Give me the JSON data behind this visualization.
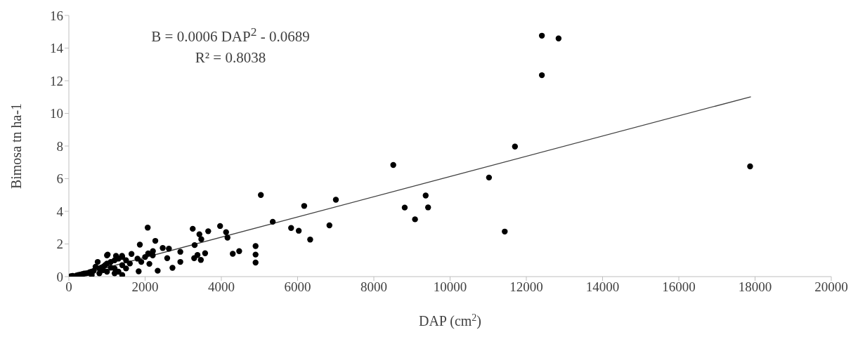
{
  "chart_data": {
    "type": "scatter",
    "xlabel": "DAP (cm$^{2}$)",
    "ylabel": "Bimosa tn ha-1",
    "annotations": [
      "B = 0.0006 DAP$^{2}$ - 0.0689",
      "R² = 0.8038"
    ],
    "xlim": [
      0,
      20000
    ],
    "xticks": [
      0,
      2000,
      4000,
      6000,
      8000,
      10000,
      12000,
      14000,
      16000,
      18000,
      20000
    ],
    "ylim": [
      0,
      16
    ],
    "yticks": [
      0,
      2,
      4,
      6,
      8,
      10,
      12,
      14,
      16
    ],
    "series": [
      {
        "marker": "circle",
        "color": "#000000",
        "x": [
          8510,
          5036,
          7004,
          6173,
          8810,
          9080,
          5348,
          5830,
          6030,
          6835,
          6330,
          2068,
          3249,
          3967,
          3655,
          4124,
          4161,
          3424,
          3474,
          2268,
          1862,
          3299,
          4898,
          4898,
          4898,
          4299,
          4468,
          3574,
          3374,
          3287,
          3462,
          2924,
          2924,
          2718,
          2330,
          2462,
          2624,
          2580,
          1643,
          1018,
          756,
          1237,
          1394,
          2080,
          2205,
          2112,
          1831,
          12408,
          12846,
          12408,
          11702,
          11021,
          9360,
          9423,
          11434,
          17870,
          50,
          100,
          200,
          250,
          300,
          350,
          400,
          450,
          500,
          550,
          600,
          650,
          800,
          850,
          900,
          950,
          1000,
          1100,
          1200,
          1300,
          1400,
          1500,
          1000,
          1200,
          1400,
          1300,
          1500,
          1600,
          1800,
          2000,
          2200,
          1900,
          800,
          600,
          900,
          1100,
          700,
          1000,
          1200,
          1400
        ],
        "values": [
          6.84,
          5.0,
          4.71,
          4.33,
          4.23,
          3.51,
          3.36,
          2.98,
          2.81,
          3.14,
          2.27,
          3.0,
          2.93,
          3.1,
          2.78,
          2.72,
          2.39,
          2.59,
          2.29,
          2.19,
          1.96,
          1.93,
          1.87,
          1.35,
          0.86,
          1.4,
          1.56,
          1.43,
          1.32,
          1.13,
          1.02,
          1.52,
          0.9,
          0.54,
          0.36,
          1.75,
          1.71,
          1.13,
          1.39,
          1.35,
          0.9,
          1.27,
          1.27,
          1.42,
          1.56,
          0.78,
          0.32,
          14.76,
          14.59,
          12.34,
          7.97,
          6.07,
          4.97,
          4.24,
          2.76,
          6.75,
          0.02,
          0.04,
          0.07,
          0.1,
          0.12,
          0.15,
          0.18,
          0.2,
          0.22,
          0.27,
          0.3,
          0.35,
          0.5,
          0.55,
          0.6,
          0.7,
          0.8,
          0.9,
          1.0,
          1.1,
          1.2,
          1.0,
          0.3,
          0.5,
          0.7,
          0.3,
          0.5,
          0.8,
          1.1,
          1.2,
          1.3,
          0.9,
          0.2,
          0.1,
          0.4,
          0.55,
          0.6,
          1.3,
          0.2,
          0.1
        ]
      },
      {
        "type": "line",
        "color": "#404040",
        "x": [
          100,
          17890
        ],
        "values": [
          0,
          11.02
        ]
      }
    ]
  }
}
